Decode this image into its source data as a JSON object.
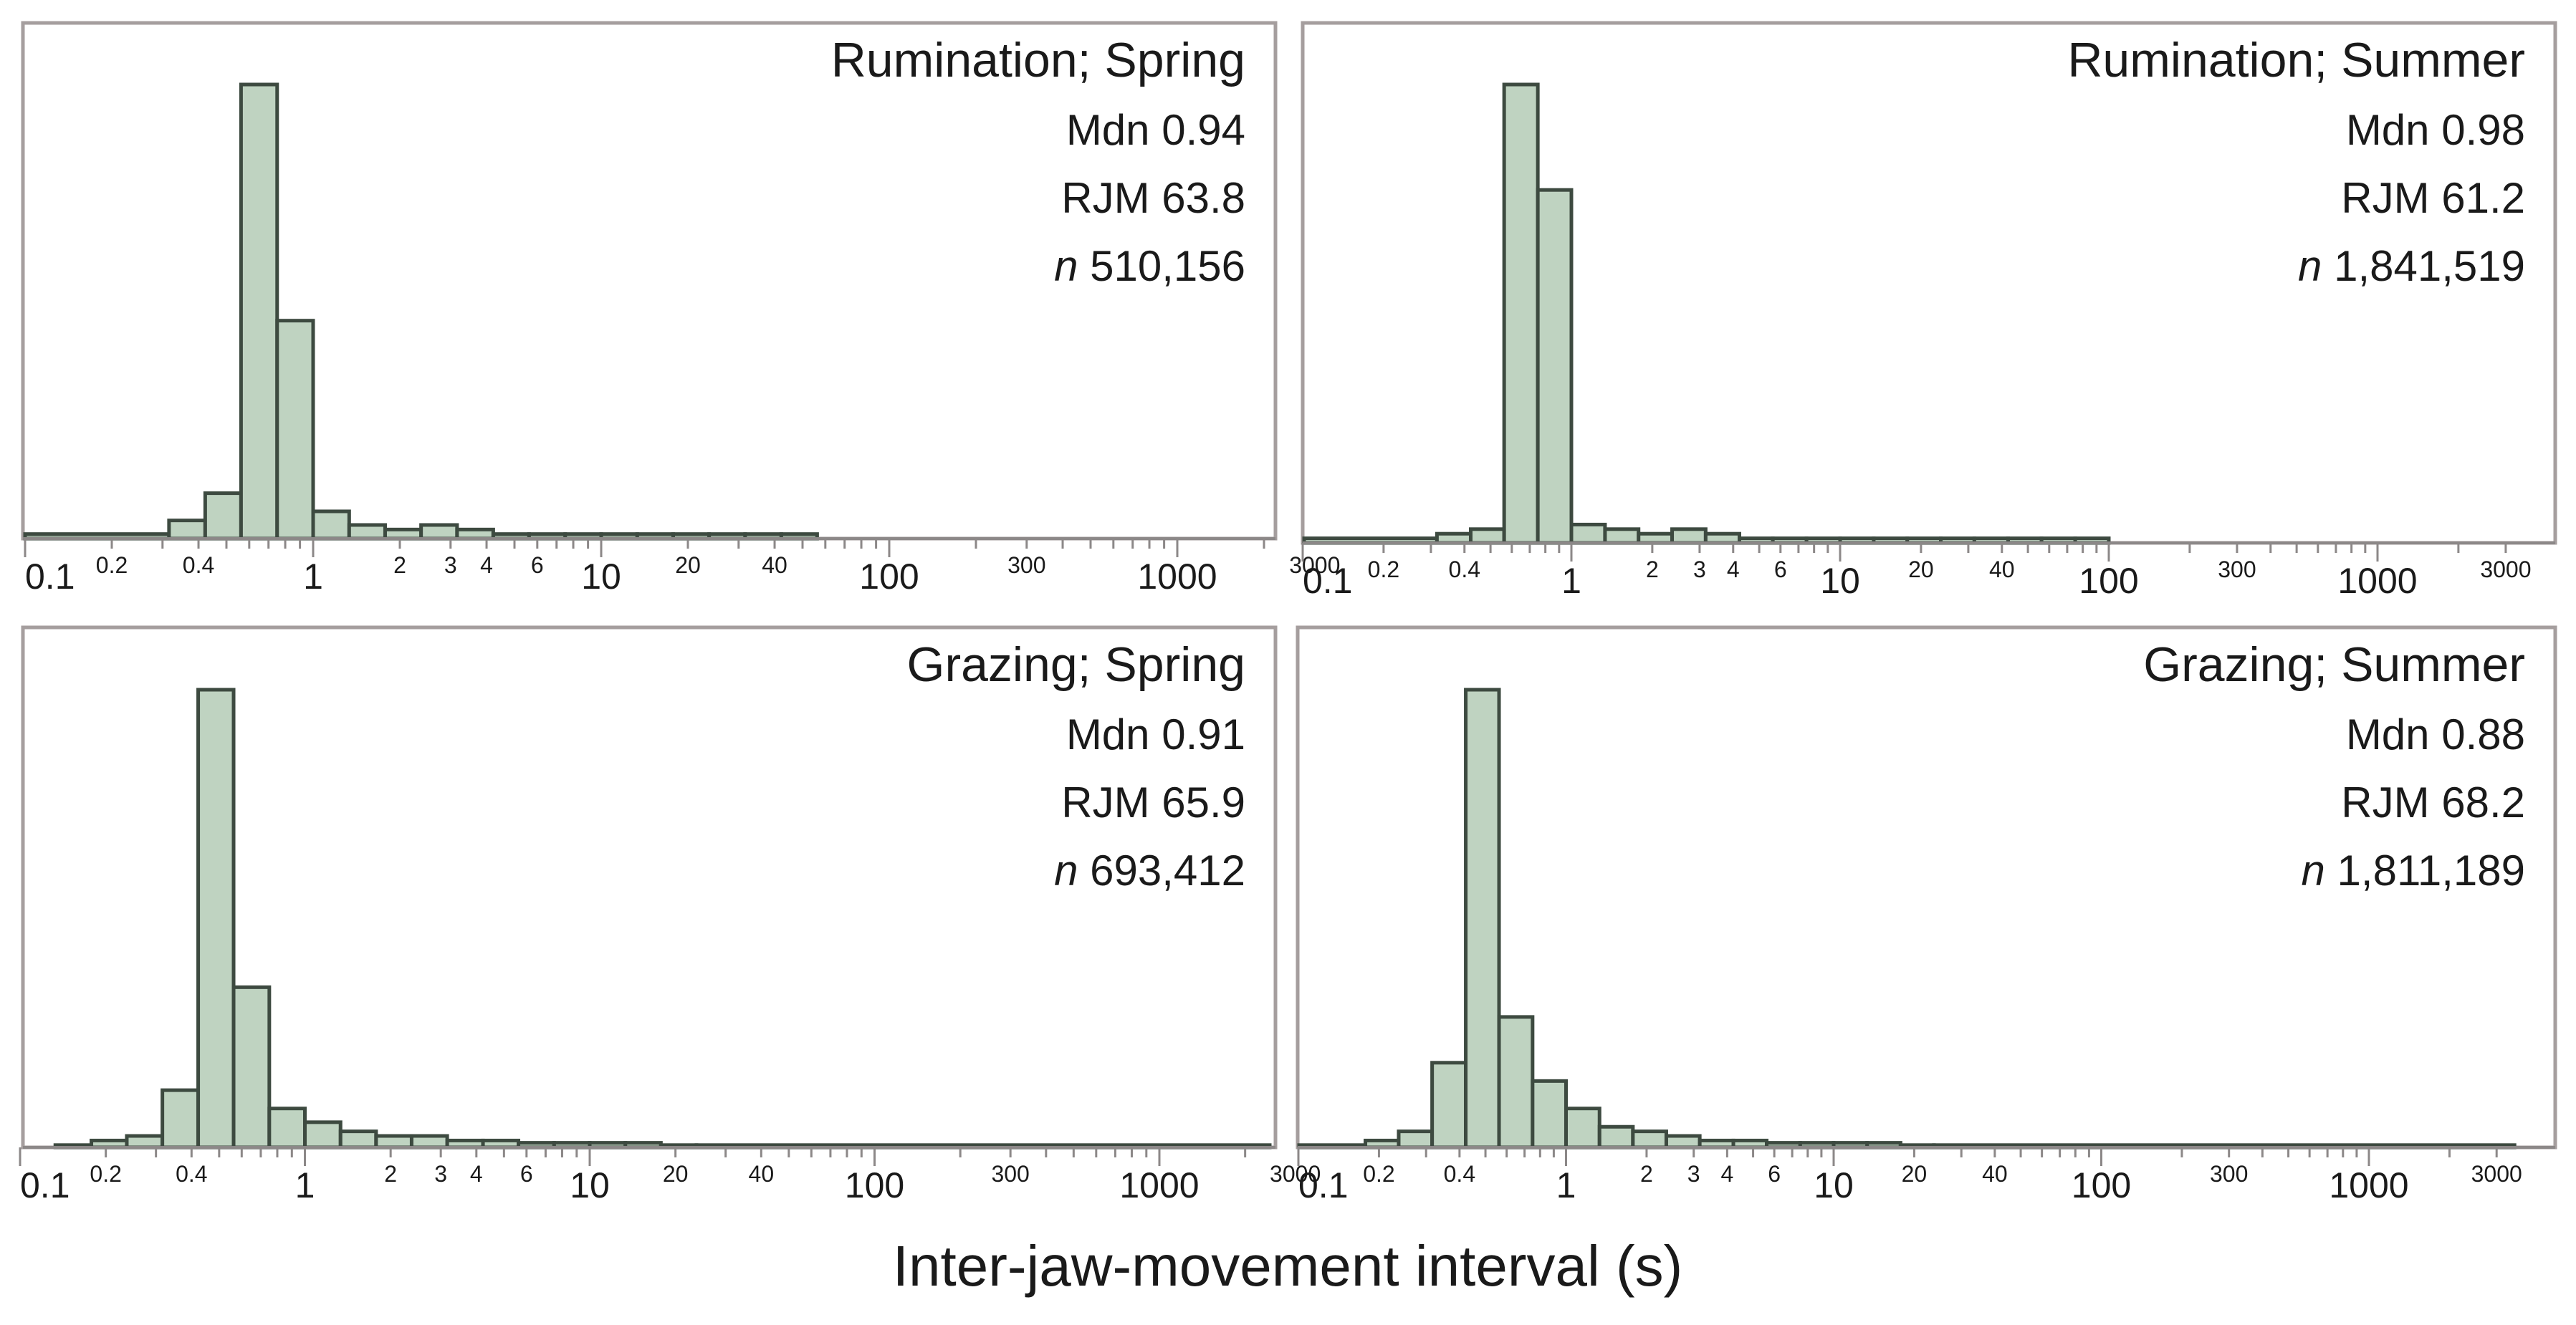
{
  "chart_data": [
    {
      "type": "bar",
      "title": "Rumination; Spring",
      "stats": {
        "median_label": "Mdn",
        "median": "0.94",
        "rjm_label": "RJM",
        "rjm": "63.8",
        "n_label": "n",
        "n": "510,156"
      },
      "x_scale": "log",
      "xlim": [
        0.1,
        3500
      ],
      "major_ticks": [
        "0.1",
        "1",
        "10",
        "100",
        "1000"
      ],
      "minor_tick_labels": [
        "0.2",
        "0.4",
        "2",
        "3",
        "4",
        "6",
        "20",
        "40",
        "300",
        "3000"
      ],
      "bin_edges": [
        0.1,
        0.316,
        0.422,
        0.562,
        0.75,
        1.0,
        1.334,
        1.778,
        2.37,
        3.16,
        4.22,
        5.62,
        7.5,
        10,
        13.34,
        17.78,
        23.7,
        31.6,
        42.2,
        56.2
      ],
      "values": [
        1,
        4,
        10,
        100,
        48,
        6,
        3,
        2,
        3,
        2,
        1,
        1,
        1,
        1,
        1,
        1,
        1,
        1,
        1
      ]
    },
    {
      "type": "bar",
      "title": "Rumination; Summer",
      "stats": {
        "median_label": "Mdn",
        "median": "0.98",
        "rjm_label": "RJM",
        "rjm": "61.2",
        "n_label": "n",
        "n": "1,841,519"
      },
      "x_scale": "log",
      "xlim": [
        0.1,
        3500
      ],
      "major_ticks": [
        "0.1",
        "1",
        "10",
        "100",
        "1000"
      ],
      "minor_tick_labels": [
        "0.2",
        "0.4",
        "2",
        "3",
        "4",
        "6",
        "20",
        "40",
        "300",
        "3000"
      ],
      "bin_edges": [
        0.1,
        0.316,
        0.422,
        0.562,
        0.75,
        1.0,
        1.334,
        1.778,
        2.37,
        3.16,
        4.22,
        5.62,
        7.5,
        10,
        13.34,
        17.78,
        23.7,
        31.6,
        42.2,
        56.2,
        75,
        100
      ],
      "values": [
        1,
        2,
        3,
        100,
        77,
        4,
        3,
        2,
        3,
        2,
        1,
        1,
        1,
        1,
        1,
        1,
        1,
        1,
        1,
        1,
        1
      ]
    },
    {
      "type": "bar",
      "title": "Grazing; Spring",
      "stats": {
        "median_label": "Mdn",
        "median": "0.91",
        "rjm_label": "RJM",
        "rjm": "65.9",
        "n_label": "n",
        "n": "693,412"
      },
      "x_scale": "log",
      "xlim": [
        0.1,
        3500
      ],
      "major_ticks": [
        "0.1",
        "1",
        "10",
        "100",
        "1000"
      ],
      "minor_tick_labels": [
        "0.2",
        "0.4",
        "2",
        "3",
        "4",
        "6",
        "20",
        "40",
        "300",
        "3000"
      ],
      "bin_edges": [
        0.133,
        0.178,
        0.237,
        0.316,
        0.422,
        0.562,
        0.75,
        1.0,
        1.334,
        1.778,
        2.37,
        3.16,
        4.22,
        5.62,
        7.5,
        10,
        13.34,
        17.78,
        23.7,
        3500
      ],
      "values": [
        0.5,
        1.5,
        2.5,
        12.5,
        100,
        35,
        8.5,
        5.5,
        3.5,
        2.5,
        2.5,
        1.5,
        1.5,
        1,
        1,
        1,
        1,
        0.5,
        0.5
      ]
    },
    {
      "type": "bar",
      "title": "Grazing; Summer",
      "stats": {
        "median_label": "Mdn",
        "median": "0.88",
        "rjm_label": "RJM",
        "rjm": "68.2",
        "n_label": "n",
        "n": "1,811,189"
      },
      "x_scale": "log",
      "xlim": [
        0.1,
        3500
      ],
      "major_ticks": [
        "0.1",
        "1",
        "10",
        "100",
        "1000"
      ],
      "minor_tick_labels": [
        "0.2",
        "0.4",
        "2",
        "3",
        "4",
        "6",
        "20",
        "40",
        "300",
        "3000"
      ],
      "bin_edges": [
        0.1,
        0.178,
        0.237,
        0.316,
        0.422,
        0.562,
        0.75,
        1.0,
        1.334,
        1.778,
        2.37,
        3.16,
        4.22,
        5.62,
        7.5,
        10,
        13.34,
        17.78,
        23.7,
        3500
      ],
      "values": [
        0.5,
        1.5,
        3.5,
        18.5,
        100,
        28.5,
        14.5,
        8.5,
        4.5,
        3.5,
        2.5,
        1.5,
        1.5,
        1,
        1,
        1,
        1,
        0.5,
        0.5
      ]
    }
  ],
  "xlabel": "Inter-jaw-movement interval (s)",
  "colors": {
    "bar_fill": "#bfd3c1",
    "bar_stroke": "#3d4a40",
    "frame": "#a59e9e"
  }
}
